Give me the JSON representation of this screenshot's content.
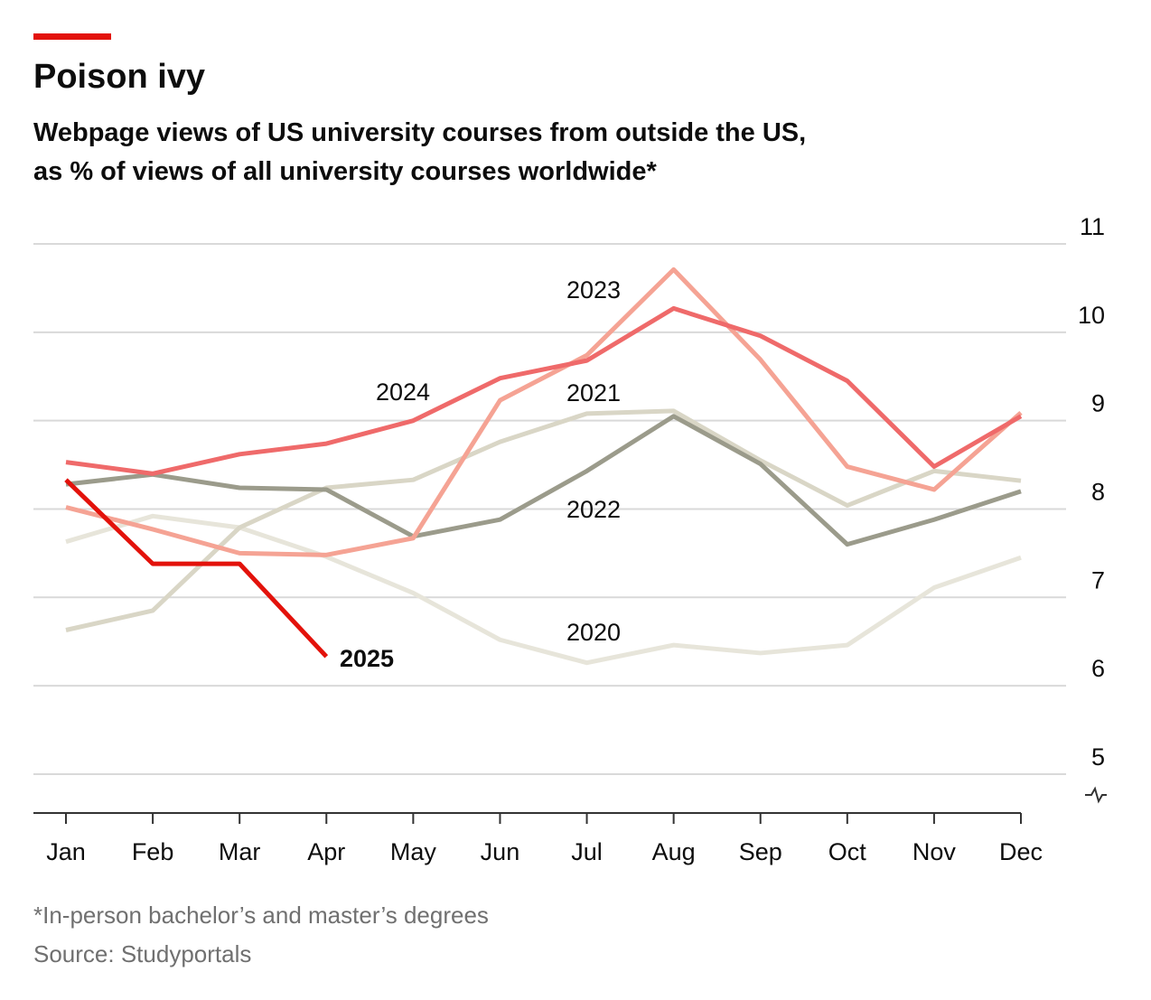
{
  "chart_data": {
    "type": "line",
    "title": "Poison ivy",
    "subtitle": [
      "Webpage views of US university courses from outside the US,",
      "as % of views of all university courses worldwide*"
    ],
    "categories": [
      "Jan",
      "Feb",
      "Mar",
      "Apr",
      "May",
      "Jun",
      "Jul",
      "Aug",
      "Sep",
      "Oct",
      "Nov",
      "Dec"
    ],
    "series": [
      {
        "name": "2020",
        "color": "#e7e5da",
        "values": [
          7.63,
          7.92,
          7.79,
          7.46,
          7.05,
          6.52,
          6.26,
          6.46,
          6.37,
          6.46,
          7.11,
          7.45
        ]
      },
      {
        "name": "2021",
        "color": "#d9d6c6",
        "values": [
          6.63,
          6.85,
          7.79,
          8.24,
          8.33,
          8.76,
          9.08,
          9.11,
          8.55,
          8.04,
          8.43,
          8.32
        ]
      },
      {
        "name": "2022",
        "color": "#9b9b8b",
        "values": [
          8.28,
          8.39,
          8.24,
          8.22,
          7.69,
          7.88,
          8.43,
          9.05,
          8.51,
          7.6,
          7.88,
          8.2
        ]
      },
      {
        "name": "2023",
        "color": "#f5a394",
        "values": [
          8.02,
          7.77,
          7.5,
          7.48,
          7.67,
          9.23,
          9.74,
          10.71,
          9.69,
          8.48,
          8.22,
          9.09
        ]
      },
      {
        "name": "2024",
        "color": "#ef6a6a",
        "values": [
          8.53,
          8.4,
          8.62,
          8.74,
          9.0,
          9.48,
          9.68,
          10.27,
          9.96,
          9.45,
          8.48,
          9.05
        ]
      },
      {
        "name": "2025",
        "color": "#e3120b",
        "values": [
          8.33,
          7.38,
          7.38,
          6.33,
          null,
          null,
          null,
          null,
          null,
          null,
          null,
          null
        ]
      }
    ],
    "ylim": [
      4.56,
      11
    ],
    "yticks": [
      5,
      6,
      7,
      8,
      9,
      10,
      11
    ],
    "grid": true,
    "footnote": "*In-person bachelor’s and master’s degrees",
    "source": "Source: Studyportals"
  }
}
